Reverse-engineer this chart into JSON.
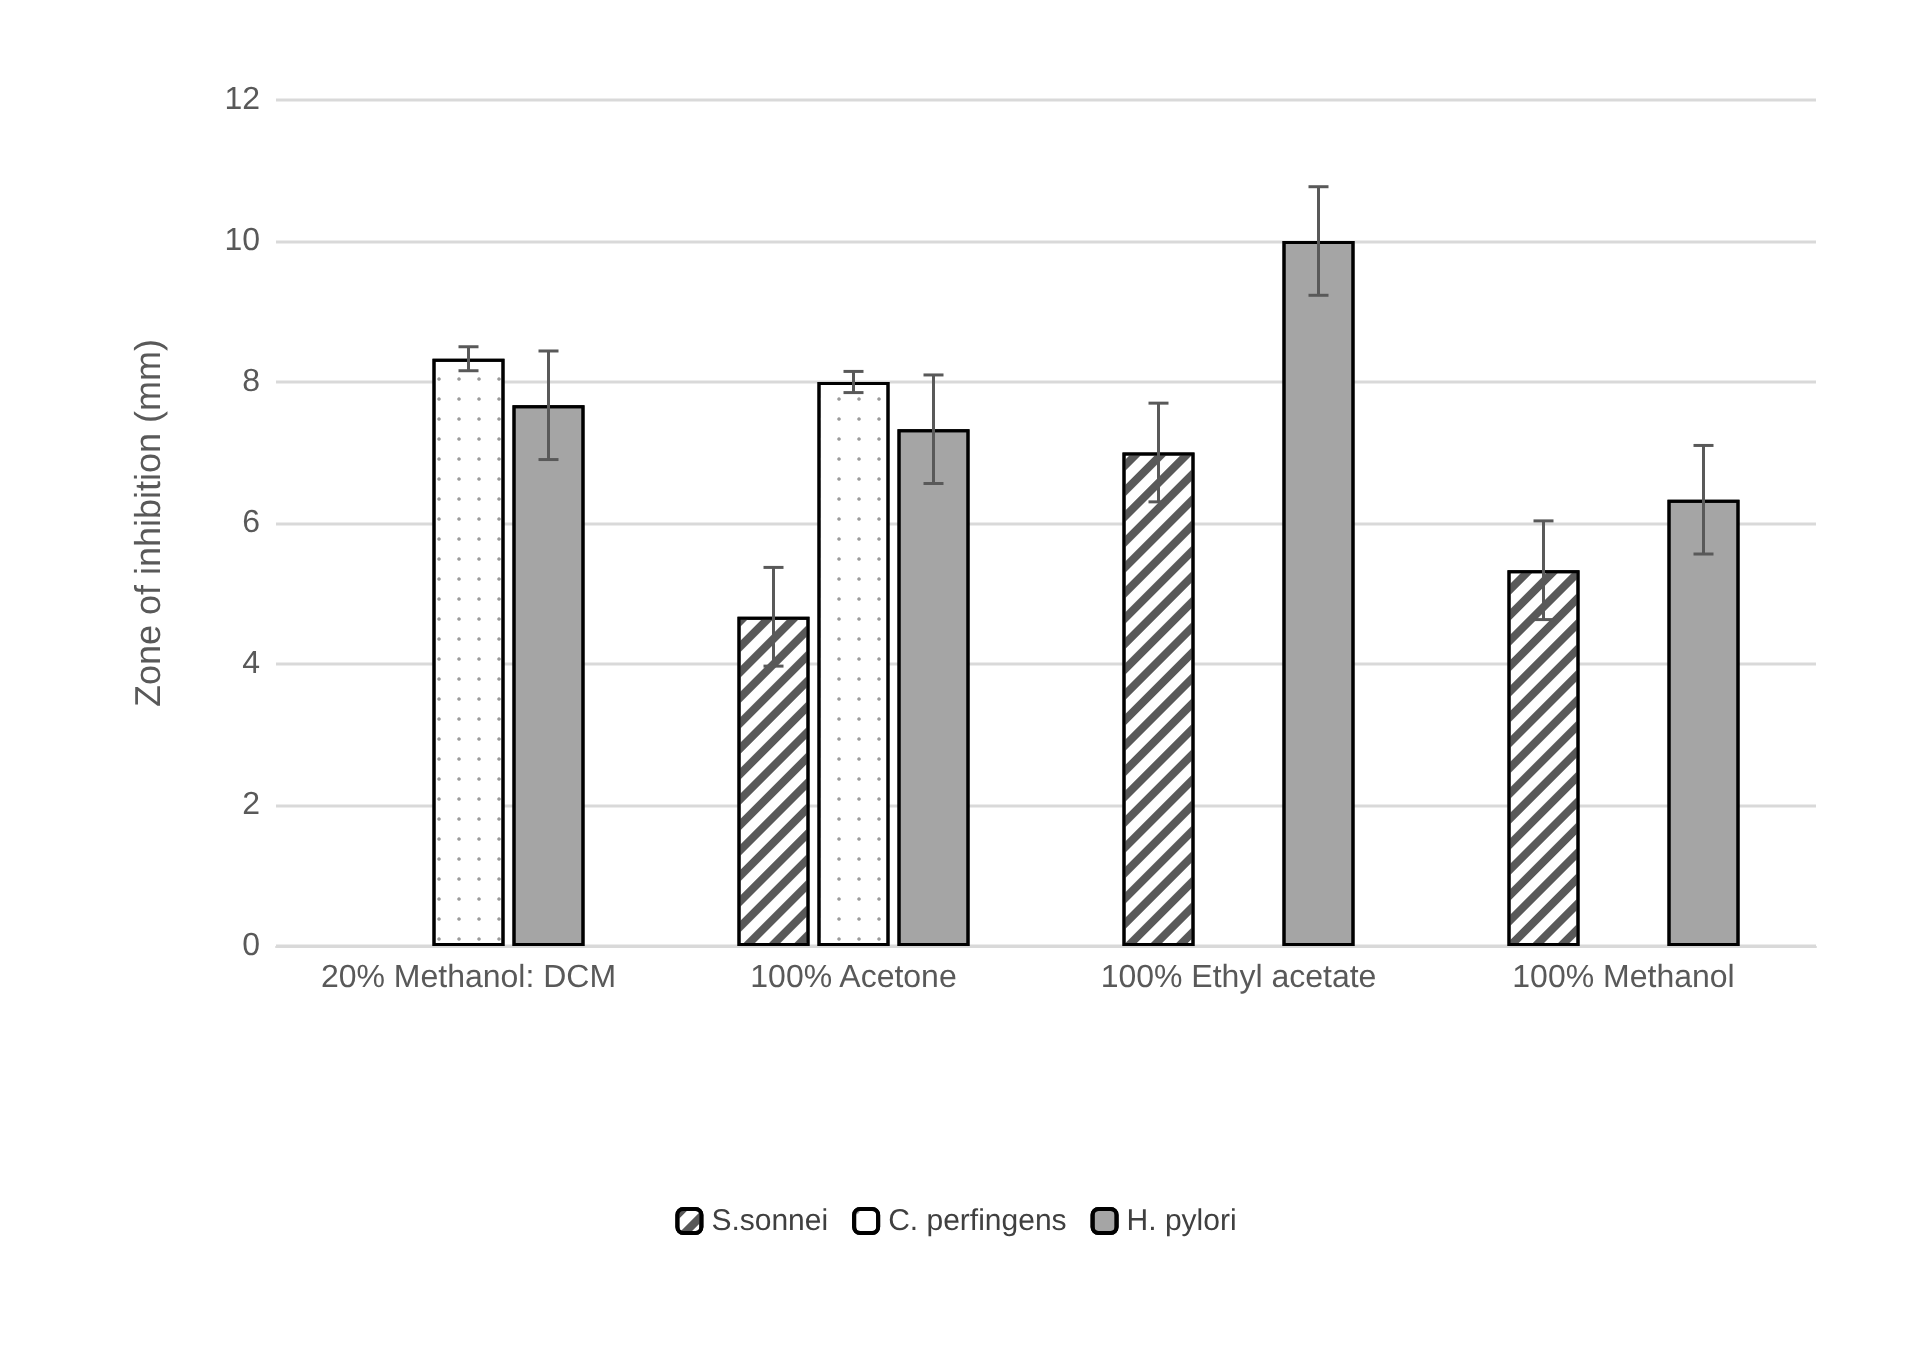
{
  "chart_data": {
    "type": "bar",
    "ylabel": "Zone of inhibition (mm)",
    "categories": [
      "20% Methanol: DCM",
      "100% Acetone",
      "100% Ethyl acetate",
      "100% Methanol"
    ],
    "series": [
      {
        "name": "S.sonnei",
        "color": "#ffffff",
        "values": [
          null,
          4.67,
          7.0,
          5.33
        ],
        "errors": [
          null,
          0.7,
          0.7,
          0.7
        ]
      },
      {
        "name": "C. perfingens",
        "color": "#ffffff",
        "values": [
          8.33,
          8.0,
          null,
          null
        ],
        "errors": [
          0.17,
          0.15,
          null,
          null
        ]
      },
      {
        "name": "H. pylori",
        "color": "#a5a5a5",
        "values": [
          7.67,
          7.33,
          10.0,
          6.33
        ],
        "errors": [
          0.77,
          0.77,
          0.77,
          0.77
        ]
      }
    ],
    "ylim": [
      0,
      12
    ],
    "yticks": [
      0,
      2,
      4,
      6,
      8,
      10,
      12
    ],
    "grid": "y",
    "legend": "bottom"
  }
}
